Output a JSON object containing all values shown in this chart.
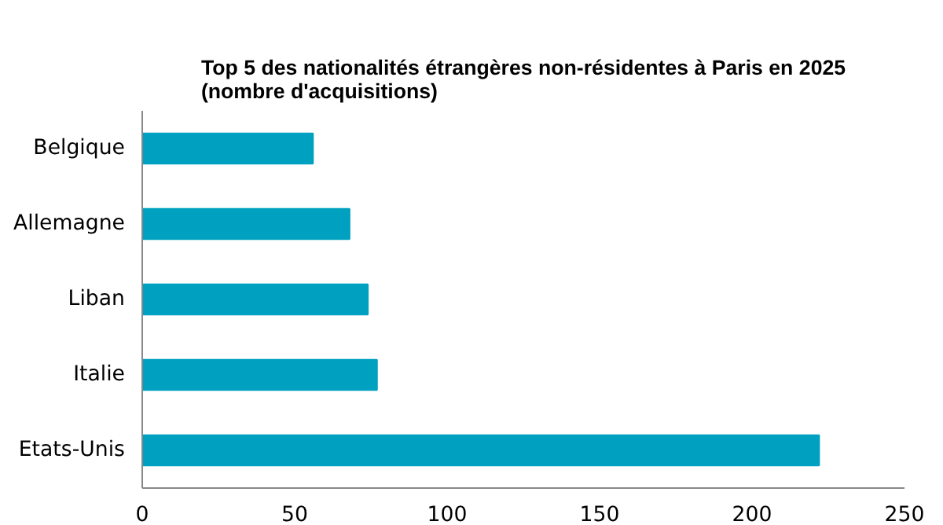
{
  "chart_data": {
    "type": "bar",
    "orientation": "horizontal",
    "title": "Top 5 des nationalités étrangères non-résidentes à Paris en 2025\n(nombre d'acquisitions)",
    "categories": [
      "Belgique",
      "Allemagne",
      "Liban",
      "Italie",
      "Etats-Unis"
    ],
    "values": [
      56,
      68,
      74,
      77,
      222
    ],
    "color": "#00a0c0",
    "xlim": [
      0,
      250
    ],
    "xticks": [
      0,
      50,
      100,
      150,
      200,
      250
    ],
    "grid": false
  }
}
